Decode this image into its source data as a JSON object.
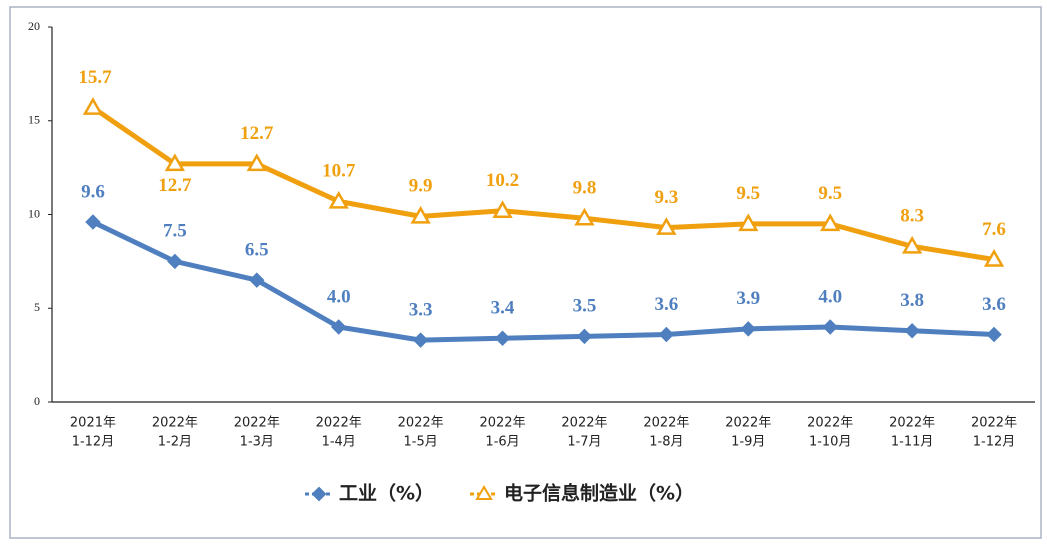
{
  "chart_data": {
    "type": "line",
    "categories": [
      [
        "2021年",
        "1-12月"
      ],
      [
        "2022年",
        "1-2月"
      ],
      [
        "2022年",
        "1-3月"
      ],
      [
        "2022年",
        "1-4月"
      ],
      [
        "2022年",
        "1-5月"
      ],
      [
        "2022年",
        "1-6月"
      ],
      [
        "2022年",
        "1-7月"
      ],
      [
        "2022年",
        "1-8月"
      ],
      [
        "2022年",
        "1-9月"
      ],
      [
        "2022年",
        "1-10月"
      ],
      [
        "2022年",
        "1-11月"
      ],
      [
        "2022年",
        "1-12月"
      ]
    ],
    "series": [
      {
        "name": "工业（%）",
        "color": "#4f7fbf",
        "marker": "diamond",
        "values": [
          9.6,
          7.5,
          6.5,
          4.0,
          3.3,
          3.4,
          3.5,
          3.6,
          3.9,
          4.0,
          3.8,
          3.6
        ],
        "value_labels": [
          "9.6",
          "7.5",
          "6.5",
          "4.0",
          "3.3",
          "3.4",
          "3.5",
          "3.6",
          "3.9",
          "4.0",
          "3.8",
          "3.6"
        ]
      },
      {
        "name": "电子信息制造业（%）",
        "color": "#f0a00f",
        "marker": "triangle",
        "values": [
          15.7,
          12.7,
          12.7,
          10.7,
          9.9,
          10.2,
          9.8,
          9.3,
          9.5,
          9.5,
          8.3,
          7.6
        ],
        "value_labels": [
          "15.7",
          "12.7",
          "12.7",
          "10.7",
          "9.9",
          "10.2",
          "9.8",
          "9.3",
          "9.5",
          "9.5",
          "8.3",
          "7.6"
        ]
      }
    ],
    "ylim": [
      0,
      20
    ],
    "yticks": [
      0,
      5,
      10,
      15,
      20
    ],
    "grid": false,
    "legend": "bottom"
  }
}
